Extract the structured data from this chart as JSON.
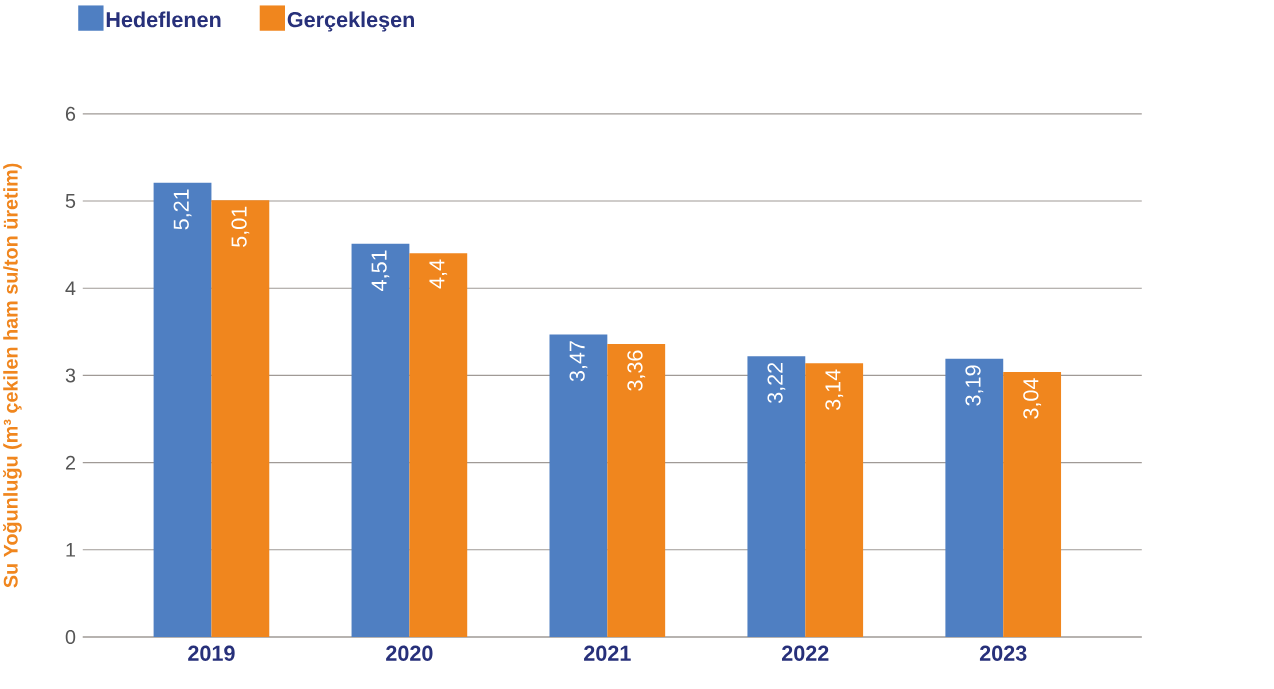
{
  "chart_data": {
    "type": "bar",
    "ylabel": "Su Yoğunluğu (m³ çekilen ham su/ton üretim)",
    "categories": [
      "2019",
      "2020",
      "2021",
      "2022",
      "2023"
    ],
    "series": [
      {
        "name": "Hedeflenen",
        "color": "#4f7fc2",
        "values": [
          5.21,
          4.51,
          3.47,
          3.22,
          3.19
        ],
        "value_labels": [
          "5,21",
          "4,51",
          "3,47",
          "3,22",
          "3,19"
        ]
      },
      {
        "name": "Gerçekleşen",
        "color": "#f0861e",
        "values": [
          5.01,
          4.4,
          3.36,
          3.14,
          3.04
        ],
        "value_labels": [
          "5,01",
          "4,4",
          "3,36",
          "3,14",
          "3,04"
        ]
      }
    ],
    "ylim": [
      0,
      6
    ],
    "yticks": [
      0,
      1,
      2,
      3,
      4,
      5,
      6
    ],
    "grid": "y",
    "legend": "top left"
  }
}
